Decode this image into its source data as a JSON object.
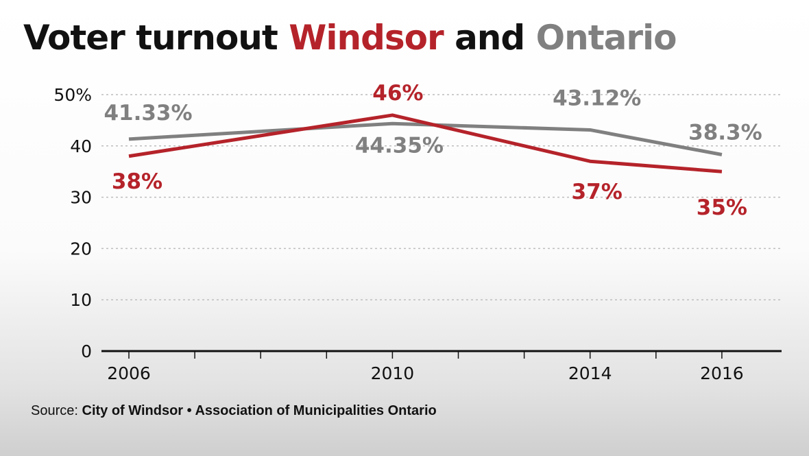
{
  "title": {
    "part1": "Voter turnout ",
    "windsor": "Windsor",
    "part2": " and ",
    "ontario": "Ontario"
  },
  "source": {
    "label": "Source:",
    "text": "City of Windsor • Association of Municipalities Ontario"
  },
  "chart_data": {
    "type": "line",
    "categories": [
      "2006",
      "2010",
      "2014",
      "2016"
    ],
    "ylim": [
      0,
      50
    ],
    "yticks": [
      "0",
      "10",
      "20",
      "30",
      "40",
      "50%"
    ],
    "grid": true,
    "series": [
      {
        "name": "Ontario",
        "color": "#808080",
        "values": [
          41.33,
          44.35,
          43.12,
          38.3
        ],
        "labels": [
          "41.33%",
          "44.35%",
          "43.12%",
          "38.3%"
        ]
      },
      {
        "name": "Windsor",
        "color": "#b5232a",
        "values": [
          38,
          46,
          37,
          35
        ],
        "labels": [
          "38%",
          "46%",
          "37%",
          "35%"
        ]
      }
    ]
  }
}
